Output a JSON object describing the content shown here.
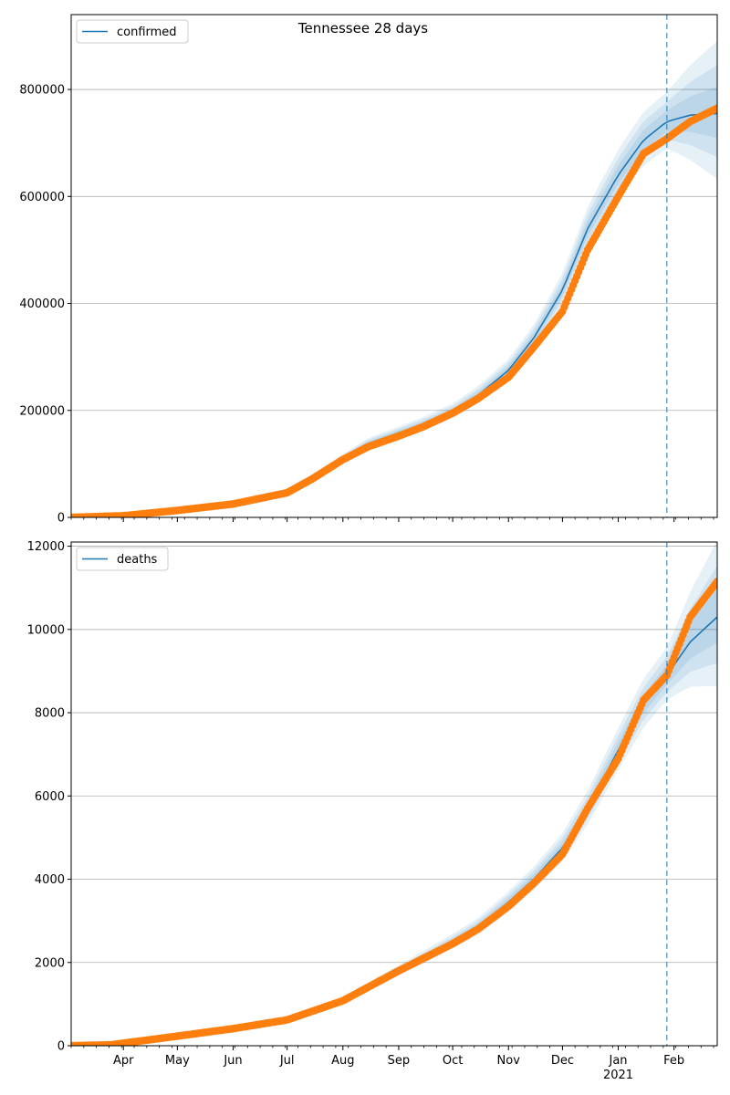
{
  "figure_title": "Tennessee 28 days",
  "colors": {
    "model_line": "#1f77b4",
    "band": "#1f77b4",
    "observed": "#ff7f0e",
    "grid": "#b0b0b0",
    "vline": "#1f77b4"
  },
  "x_axis": {
    "month_labels": [
      {
        "label": "Apr",
        "date": "2020-04-01"
      },
      {
        "label": "May",
        "date": "2020-05-01"
      },
      {
        "label": "Jun",
        "date": "2020-06-01"
      },
      {
        "label": "Jul",
        "date": "2020-07-01"
      },
      {
        "label": "Aug",
        "date": "2020-08-01"
      },
      {
        "label": "Sep",
        "date": "2020-09-01"
      },
      {
        "label": "Oct",
        "date": "2020-10-01"
      },
      {
        "label": "Nov",
        "date": "2020-11-01"
      },
      {
        "label": "Dec",
        "date": "2020-12-01"
      },
      {
        "label": "Jan",
        "date": "2021-01-01"
      },
      {
        "label": "Feb",
        "date": "2021-02-01"
      }
    ],
    "year_label": "2021"
  },
  "chart_data": [
    {
      "type": "line",
      "legend": "confirmed",
      "legend_position": "upper-left",
      "x_range": [
        "2020-03-03",
        "2021-02-25"
      ],
      "ylim": [
        0,
        940000
      ],
      "yticks": [
        0,
        200000,
        400000,
        600000,
        800000
      ],
      "grid": "y",
      "forecast_start": "2021-01-28",
      "series": [
        {
          "name": "confirmed",
          "role": "model",
          "x": [
            "2020-03-03",
            "2020-04-01",
            "2020-05-01",
            "2020-06-01",
            "2020-07-01",
            "2020-07-15",
            "2020-08-01",
            "2020-08-15",
            "2020-09-01",
            "2020-09-15",
            "2020-10-01",
            "2020-10-15",
            "2020-11-01",
            "2020-11-15",
            "2020-12-01",
            "2020-12-15",
            "2021-01-01",
            "2021-01-15",
            "2021-01-28",
            "2021-02-10",
            "2021-02-25"
          ],
          "y": [
            0,
            3000,
            13000,
            25000,
            45000,
            75000,
            110000,
            138000,
            158000,
            175000,
            198000,
            228000,
            275000,
            335000,
            425000,
            540000,
            640000,
            705000,
            740000,
            752000,
            755000
          ]
        },
        {
          "name": "observed",
          "role": "observed",
          "x": [
            "2020-03-03",
            "2020-04-01",
            "2020-05-01",
            "2020-06-01",
            "2020-07-01",
            "2020-07-15",
            "2020-08-01",
            "2020-08-15",
            "2020-09-01",
            "2020-09-15",
            "2020-10-01",
            "2020-10-15",
            "2020-11-01",
            "2020-11-15",
            "2020-12-01",
            "2020-12-15",
            "2021-01-01",
            "2021-01-15",
            "2021-01-28",
            "2021-02-10",
            "2021-02-25"
          ],
          "y": [
            0,
            3000,
            13000,
            25000,
            46000,
            72000,
            108000,
            132000,
            152000,
            170000,
            195000,
            222000,
            262000,
            318000,
            385000,
            500000,
            600000,
            680000,
            708000,
            740000,
            765000
          ]
        }
      ]
    },
    {
      "type": "line",
      "legend": "deaths",
      "legend_position": "upper-left",
      "x_range": [
        "2020-03-03",
        "2021-02-25"
      ],
      "ylim": [
        0,
        12100
      ],
      "yticks": [
        0,
        2000,
        4000,
        6000,
        8000,
        10000,
        12000
      ],
      "grid": "y",
      "forecast_start": "2021-01-28",
      "series": [
        {
          "name": "deaths",
          "role": "model",
          "x": [
            "2020-03-03",
            "2020-03-25",
            "2020-04-01",
            "2020-05-01",
            "2020-06-01",
            "2020-07-01",
            "2020-08-01",
            "2020-09-01",
            "2020-10-01",
            "2020-10-15",
            "2020-11-01",
            "2020-11-15",
            "2020-12-01",
            "2020-12-15",
            "2021-01-01",
            "2021-01-15",
            "2021-01-28",
            "2021-02-10",
            "2021-02-25"
          ],
          "y": [
            0,
            20,
            60,
            230,
            420,
            640,
            1100,
            1800,
            2500,
            2850,
            3450,
            4000,
            4750,
            5700,
            7100,
            8200,
            8900,
            9700,
            10300
          ]
        },
        {
          "name": "observed",
          "role": "observed",
          "x": [
            "2020-03-03",
            "2020-03-25",
            "2020-04-01",
            "2020-05-01",
            "2020-06-01",
            "2020-07-01",
            "2020-08-01",
            "2020-09-01",
            "2020-10-01",
            "2020-10-15",
            "2020-11-01",
            "2020-11-15",
            "2020-12-01",
            "2020-12-15",
            "2021-01-01",
            "2021-01-15",
            "2021-01-28",
            "2021-02-10",
            "2021-02-25"
          ],
          "y": [
            0,
            20,
            60,
            230,
            410,
            620,
            1080,
            1800,
            2450,
            2800,
            3350,
            3900,
            4600,
            5700,
            6900,
            8300,
            8900,
            10300,
            11150
          ]
        }
      ]
    }
  ]
}
